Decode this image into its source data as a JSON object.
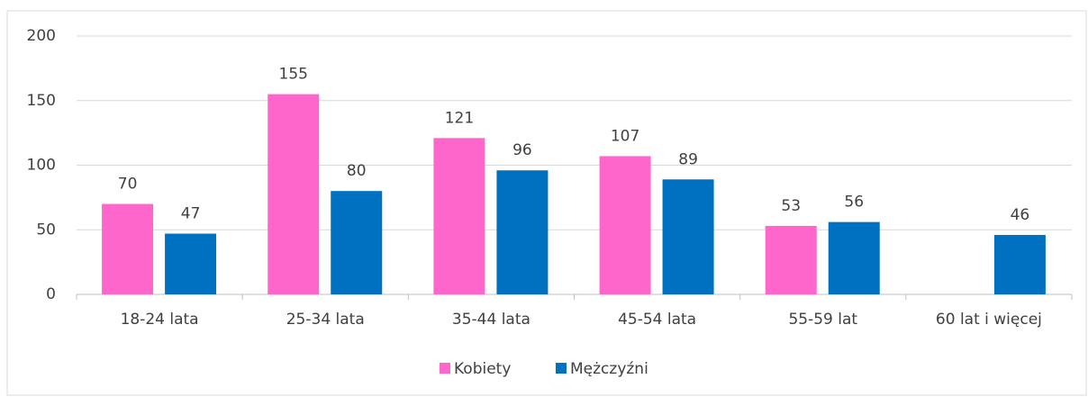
{
  "chart_data": {
    "type": "bar",
    "categories": [
      "18-24 lata",
      "25-34 lata",
      "35-44 lata",
      "45-54 lata",
      "55-59 lat",
      "60 lat i więcej"
    ],
    "series": [
      {
        "name": "Kobiety",
        "color": "#ff66cc",
        "values": [
          70,
          155,
          121,
          107,
          53,
          null
        ]
      },
      {
        "name": "Mężczyźni",
        "color": "#0070c0",
        "values": [
          47,
          80,
          96,
          89,
          56,
          46
        ]
      }
    ],
    "ylim": [
      0,
      200
    ],
    "yticks": [
      0,
      50,
      100,
      150,
      200
    ],
    "grid": true,
    "legend": "bottom"
  }
}
